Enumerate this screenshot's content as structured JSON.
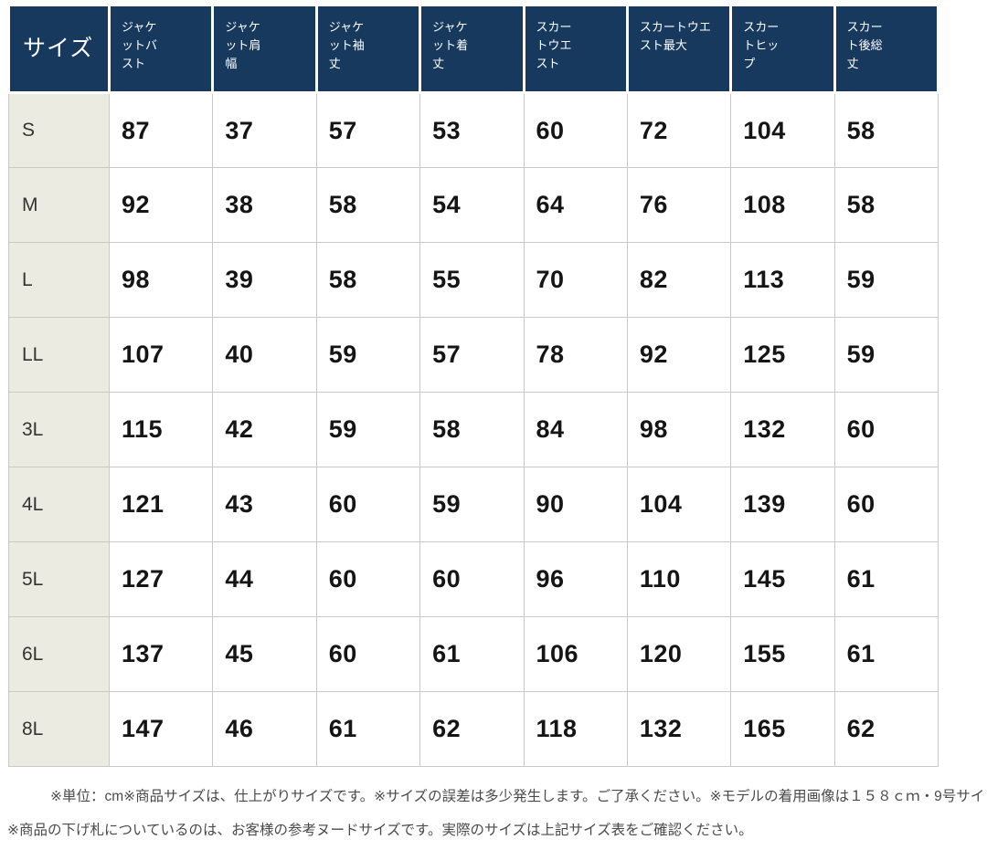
{
  "colors": {
    "header_bg": "#17395e",
    "header_text": "#ffffff",
    "label_column_bg": "#ecebe2",
    "cell_border": "#c9c9c9",
    "value_text": "#151515",
    "footnote_text": "#4a4a4a",
    "page_bg": "#ffffff"
  },
  "table": {
    "corner_label": "サイズ",
    "column_headers": [
      "ジャケ\nットバ\nスト",
      "ジャケ\nット肩\n幅",
      "ジャケ\nット袖\n丈",
      "ジャケ\nット着\n丈",
      "スカー\nトウエ\nスト",
      "スカートウエ\nスト最大",
      "スカー\nトヒッ\nプ",
      "スカー\nト後総\n丈"
    ],
    "rows": [
      {
        "label": "S",
        "values": [
          87,
          37,
          57,
          53,
          60,
          72,
          104,
          58
        ]
      },
      {
        "label": "M",
        "values": [
          92,
          38,
          58,
          54,
          64,
          76,
          108,
          58
        ]
      },
      {
        "label": "L",
        "values": [
          98,
          39,
          58,
          55,
          70,
          82,
          113,
          59
        ]
      },
      {
        "label": "LL",
        "values": [
          107,
          40,
          59,
          57,
          78,
          92,
          125,
          59
        ]
      },
      {
        "label": "3L",
        "values": [
          115,
          42,
          59,
          58,
          84,
          98,
          132,
          60
        ]
      },
      {
        "label": "4L",
        "values": [
          121,
          43,
          60,
          59,
          90,
          104,
          139,
          60
        ]
      },
      {
        "label": "5L",
        "values": [
          127,
          44,
          60,
          60,
          96,
          110,
          145,
          61
        ]
      },
      {
        "label": "6L",
        "values": [
          137,
          45,
          60,
          61,
          106,
          120,
          155,
          61
        ]
      },
      {
        "label": "8L",
        "values": [
          147,
          46,
          61,
          62,
          118,
          132,
          165,
          62
        ]
      }
    ]
  },
  "footnotes": {
    "line1": "※単位：cm※商品サイズは、仕上がりサイズです。※サイズの誤差は多少発生します。ご了承ください。※モデルの着用画像は１５８ｃｍ・9号サイ",
    "line2": "※商品の下げ札についているのは、お客様の参考ヌードサイズです。実際のサイズは上記サイズ表をご確認ください。"
  },
  "chart_data": {
    "type": "table",
    "title": "サイズ表 (clothing size chart, unit: cm)",
    "columns": [
      "サイズ",
      "ジャケットバスト",
      "ジャケット肩幅",
      "ジャケット袖丈",
      "ジャケット着丈",
      "スカートウエスト",
      "スカートウエスト最大",
      "スカートヒップ",
      "スカート後総丈"
    ],
    "rows": [
      [
        "S",
        87,
        37,
        57,
        53,
        60,
        72,
        104,
        58
      ],
      [
        "M",
        92,
        38,
        58,
        54,
        64,
        76,
        108,
        58
      ],
      [
        "L",
        98,
        39,
        58,
        55,
        70,
        82,
        113,
        59
      ],
      [
        "LL",
        107,
        40,
        59,
        57,
        78,
        92,
        125,
        59
      ],
      [
        "3L",
        115,
        42,
        59,
        58,
        84,
        98,
        132,
        60
      ],
      [
        "4L",
        121,
        43,
        60,
        59,
        90,
        104,
        139,
        60
      ],
      [
        "5L",
        127,
        44,
        60,
        60,
        96,
        110,
        145,
        61
      ],
      [
        "6L",
        137,
        45,
        60,
        61,
        106,
        120,
        155,
        61
      ],
      [
        "8L",
        147,
        46,
        61,
        62,
        118,
        132,
        165,
        62
      ]
    ]
  }
}
